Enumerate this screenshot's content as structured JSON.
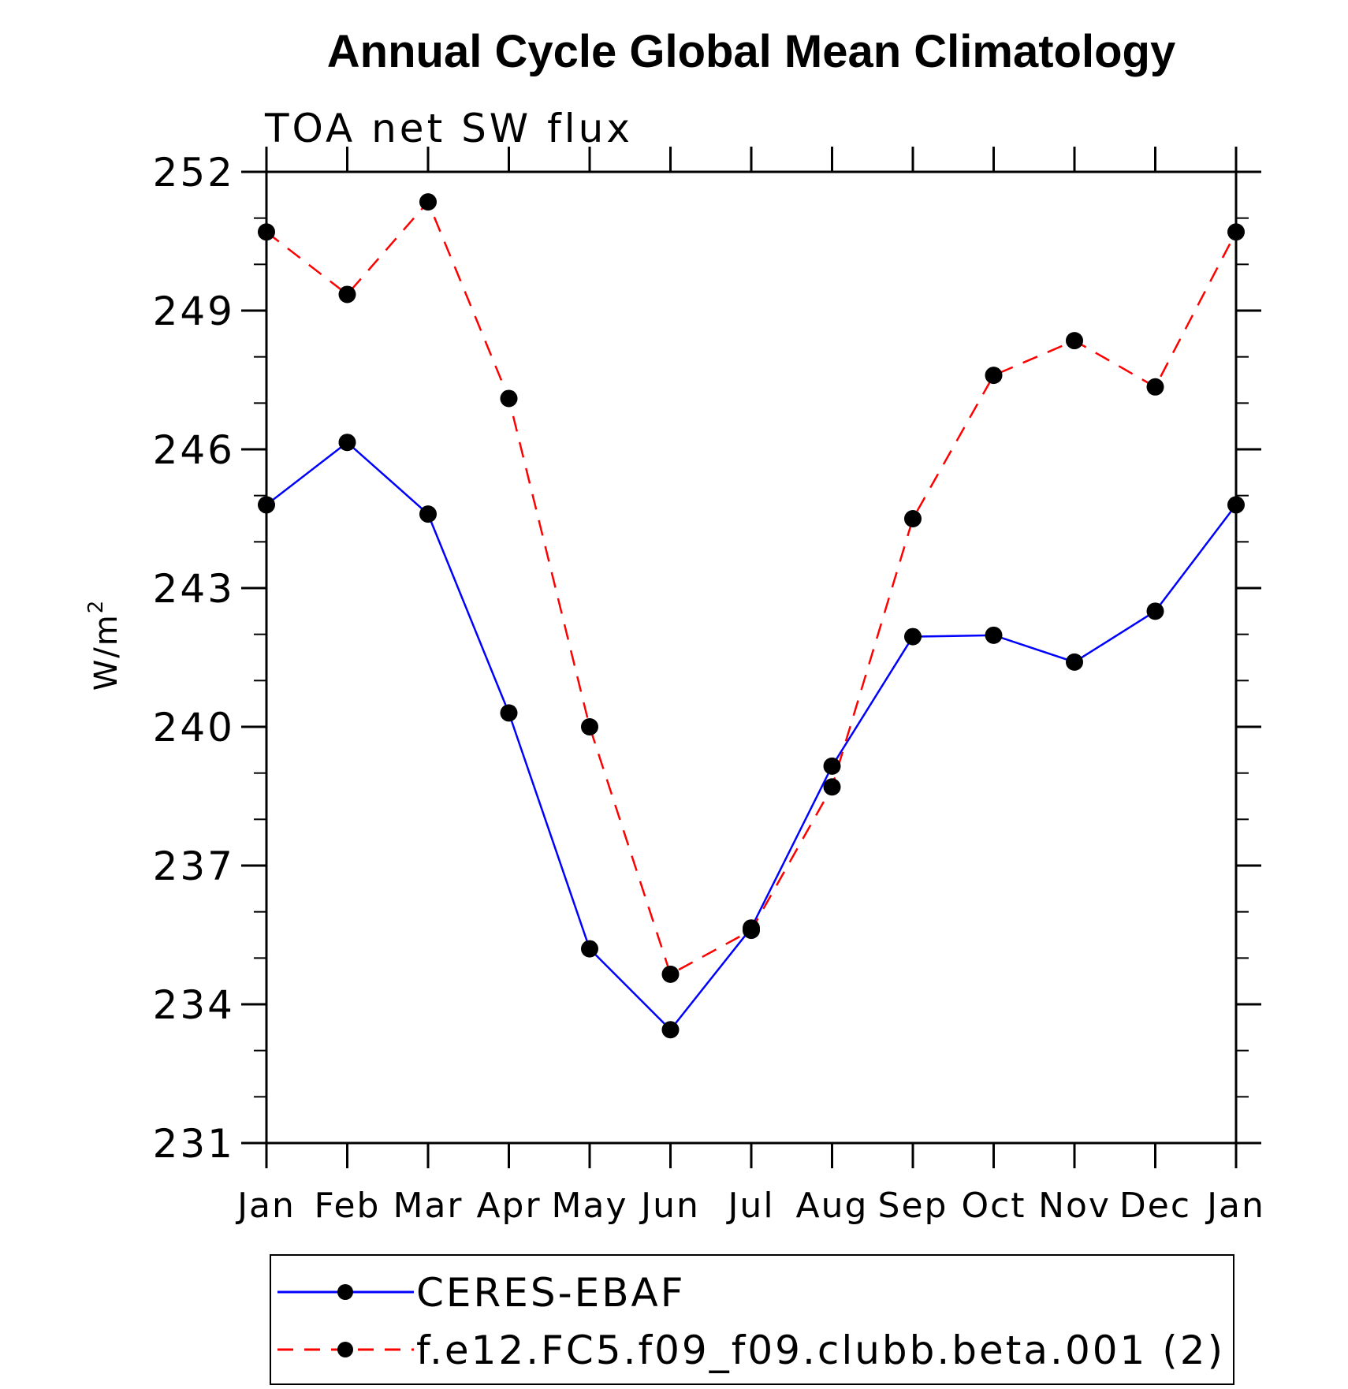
{
  "chart_data": {
    "type": "line",
    "title": "Annual Cycle Global Mean Climatology",
    "subtitle": "TOA net SW flux",
    "ylabel": "W/m",
    "ylabel_superscript": "2",
    "xlabel": "",
    "categories": [
      "Jan",
      "Feb",
      "Mar",
      "Apr",
      "May",
      "Jun",
      "Jul",
      "Aug",
      "Sep",
      "Oct",
      "Nov",
      "Dec",
      "Jan"
    ],
    "ylim": [
      231,
      252
    ],
    "yticks": [
      231,
      234,
      237,
      240,
      243,
      246,
      249,
      252
    ],
    "grid": false,
    "legend_position": "bottom",
    "series": [
      {
        "name": "CERES-EBAF",
        "color": "#0000ff",
        "dash": "solid",
        "values": [
          244.8,
          246.15,
          244.6,
          240.3,
          235.2,
          233.45,
          235.65,
          239.15,
          241.95,
          241.98,
          241.4,
          242.5,
          244.8
        ]
      },
      {
        "name": "f.e12.FC5.f09_f09.clubb.beta.001 (2)",
        "color": "#ff0000",
        "dash": "dashed",
        "values": [
          250.7,
          249.35,
          251.35,
          247.1,
          240.0,
          234.65,
          235.6,
          238.7,
          244.5,
          247.6,
          248.35,
          247.35,
          250.7
        ]
      }
    ]
  }
}
